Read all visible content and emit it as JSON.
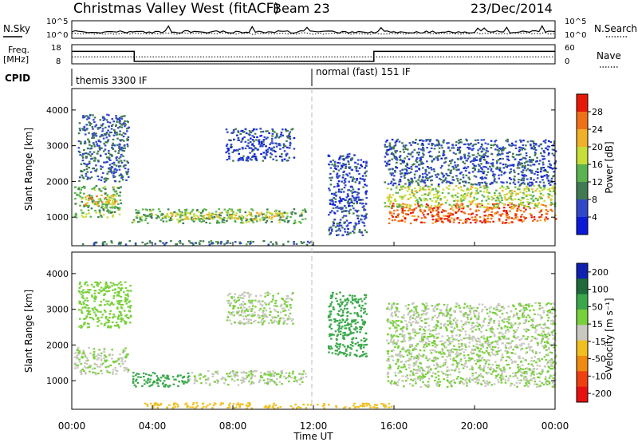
{
  "header": {
    "station": "Christmas Valley West (fitACF)",
    "beam": "Beam 23",
    "date": "23/Dec/2014"
  },
  "side_labels": {
    "nsky": "N.Sky",
    "nsearch": "N.Search",
    "freq": "Freq.",
    "freq_unit": "[MHz]",
    "nave": "Nave",
    "cpid": "CPID"
  },
  "cpid_modes": [
    "themis 3300 IF",
    "normal (fast) 151 IF"
  ],
  "chart_data": [
    {
      "type": "line",
      "name": "noise-panel",
      "y_ticks_left": [
        "10^5",
        "10^0"
      ],
      "y_ticks_right": [
        "10^5",
        "10^0"
      ],
      "series": [
        {
          "name": "N.Sky"
        },
        {
          "name": "N.Search"
        }
      ]
    },
    {
      "type": "line",
      "name": "freq-nave-panel",
      "x": [
        0,
        3.1,
        3.1,
        15.0,
        15.0,
        24
      ],
      "series": [
        {
          "name": "Freq.",
          "values": [
            14.5,
            14.5,
            9.3,
            9.3,
            14.5,
            14.5
          ]
        },
        {
          "name": "Nave",
          "values": [
            22,
            22,
            22,
            22,
            22,
            22
          ]
        }
      ],
      "y_ticks_left": [
        18,
        8
      ],
      "y_ticks_right": [
        60,
        0
      ],
      "ylim_left": [
        8,
        18
      ],
      "ylim_right": [
        0,
        60
      ]
    },
    {
      "type": "heatmap",
      "name": "power-panel",
      "ylabel": "Slant Range [km]",
      "ylim": [
        200,
        4600
      ],
      "y_ticks": [
        1000,
        2000,
        3000,
        4000
      ],
      "xlim": [
        0,
        24
      ],
      "colorbar": {
        "label": "Power [dB]",
        "ticks": [
          4,
          8,
          12,
          16,
          20,
          24,
          28
        ],
        "range": [
          0,
          32
        ],
        "colors": [
          "#0a1ad8",
          "#3048c8",
          "#3f7a52",
          "#5ab34e",
          "#c7dd38",
          "#f0b02a",
          "#f07018",
          "#e81808"
        ]
      },
      "regions": [
        {
          "t": [
            0.1,
            2.4
          ],
          "r": [
            1000,
            1900
          ],
          "v": 14
        },
        {
          "t": [
            0.6,
            2.2
          ],
          "r": [
            1350,
            1650
          ],
          "v": 22
        },
        {
          "t": [
            0.3,
            2.8
          ],
          "r": [
            2000,
            3900
          ],
          "v": 8
        },
        {
          "t": [
            2.9,
            11.6
          ],
          "r": [
            850,
            1250
          ],
          "v": 13
        },
        {
          "t": [
            4.5,
            10.5
          ],
          "r": [
            950,
            1150
          ],
          "v": 20
        },
        {
          "t": [
            7.6,
            11.0
          ],
          "r": [
            2600,
            3500
          ],
          "v": 6
        },
        {
          "t": [
            0.5,
            12.0
          ],
          "r": [
            250,
            360
          ],
          "v": 9
        },
        {
          "t": [
            12.7,
            14.6
          ],
          "r": [
            500,
            2800
          ],
          "v": 6
        },
        {
          "t": [
            15.7,
            24.0
          ],
          "r": [
            850,
            1400
          ],
          "v": 27
        },
        {
          "t": [
            15.5,
            24.0
          ],
          "r": [
            1300,
            1900
          ],
          "v": 17
        },
        {
          "t": [
            15.5,
            24.0
          ],
          "r": [
            1900,
            3200
          ],
          "v": 7
        }
      ]
    },
    {
      "type": "heatmap",
      "name": "velocity-panel",
      "ylabel": "Slant Range [km]",
      "xlabel": "Time UT",
      "ylim": [
        200,
        4600
      ],
      "y_ticks": [
        1000,
        2000,
        3000,
        4000
      ],
      "xlim": [
        0,
        24
      ],
      "x_ticks": [
        "00:00",
        "04:00",
        "08:00",
        "12:00",
        "16:00",
        "20:00",
        "00:00"
      ],
      "colorbar": {
        "label": "Velocity [m s⁻¹]",
        "ticks": [
          200,
          100,
          50,
          15,
          -15,
          -50,
          -100,
          -200
        ],
        "colors": [
          "#1020b0",
          "#1e6a3a",
          "#3aa84a",
          "#78d03a",
          "#c8c8c0",
          "#f0c020",
          "#f08a10",
          "#f04010",
          "#e81010"
        ]
      },
      "regions": [
        {
          "t": [
            0.1,
            2.8
          ],
          "r": [
            1200,
            1950
          ],
          "v": 0
        },
        {
          "t": [
            0.3,
            2.9
          ],
          "r": [
            2500,
            3800
          ],
          "v": 10
        },
        {
          "t": [
            3.0,
            5.8
          ],
          "r": [
            850,
            1250
          ],
          "v": 60
        },
        {
          "t": [
            5.8,
            11.6
          ],
          "r": [
            900,
            1300
          ],
          "v": 0
        },
        {
          "t": [
            7.6,
            11.0
          ],
          "r": [
            2600,
            3500
          ],
          "v": 0
        },
        {
          "t": [
            3.5,
            16.0
          ],
          "r": [
            250,
            400
          ],
          "v": -70
        },
        {
          "t": [
            12.7,
            14.6
          ],
          "r": [
            1700,
            3500
          ],
          "v": 60
        },
        {
          "t": [
            15.6,
            24.0
          ],
          "r": [
            850,
            1900
          ],
          "v": 0
        },
        {
          "t": [
            15.6,
            24.0
          ],
          "r": [
            1900,
            3200
          ],
          "v": 0
        }
      ]
    }
  ]
}
